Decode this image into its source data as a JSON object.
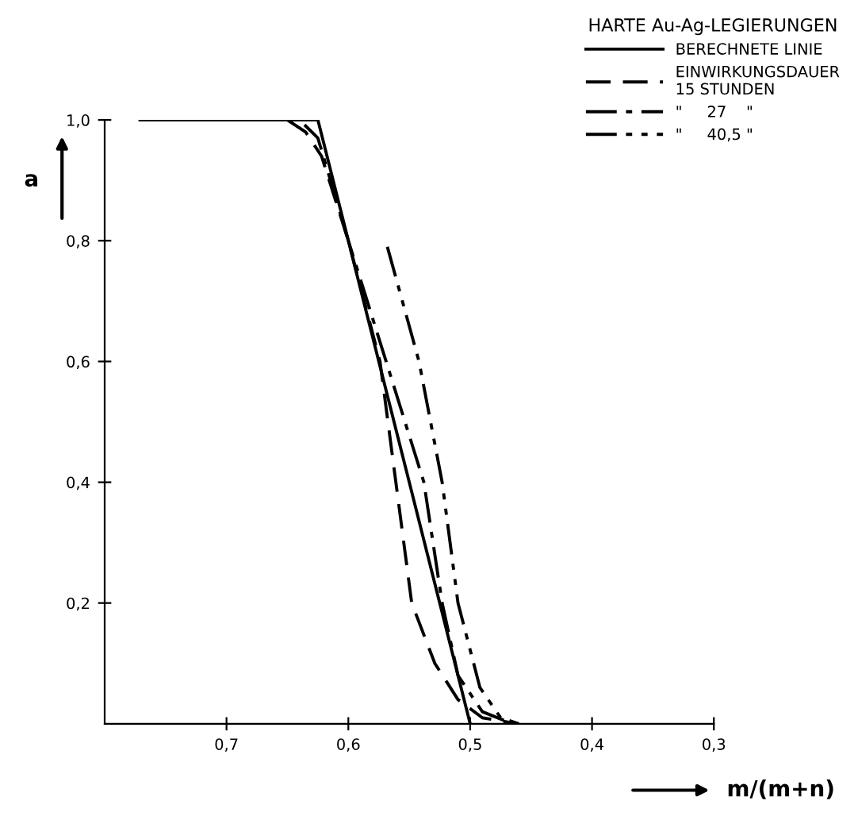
{
  "chart_data": {
    "type": "line",
    "legend_title": "HARTE Au-Ag-LEGIERUNGEN",
    "xlabel": "m/(m+n)",
    "ylabel": "a",
    "xlim": [
      0.8,
      0.3
    ],
    "ylim": [
      0,
      1.0
    ],
    "xticks": [
      {
        "value": 0.7,
        "label": "0,7"
      },
      {
        "value": 0.6,
        "label": "0,6"
      },
      {
        "value": 0.5,
        "label": "0,5"
      },
      {
        "value": 0.4,
        "label": "0,4"
      },
      {
        "value": 0.3,
        "label": "0,3"
      }
    ],
    "yticks": [
      {
        "value": 0.2,
        "label": "0,2"
      },
      {
        "value": 0.4,
        "label": "0,4"
      },
      {
        "value": 0.6,
        "label": "0,6"
      },
      {
        "value": 0.8,
        "label": "0,8"
      },
      {
        "value": 1.0,
        "label": "1,0"
      }
    ],
    "grid": false,
    "legend": "top right",
    "series": [
      {
        "name": "BERECHNETE LINIE",
        "color": "#000000",
        "line_style": "solid",
        "x": [
          0.771,
          0.625,
          0.5
        ],
        "values": [
          1.0,
          1.0,
          0.0
        ]
      },
      {
        "name": "EINWIRKUNGSDAUER\n15 STUNDEN",
        "color": "#000000",
        "line_style": "dashed",
        "x": [
          0.771,
          0.65,
          0.635,
          0.622,
          0.6,
          0.574,
          0.561,
          0.548,
          0.529,
          0.51,
          0.49,
          0.461
        ],
        "values": [
          1.0,
          1.0,
          0.98,
          0.94,
          0.8,
          0.6,
          0.4,
          0.2,
          0.1,
          0.04,
          0.01,
          0.0
        ]
      },
      {
        "name": "\"     27    \"",
        "color": "#000000",
        "line_style": "dashdot",
        "x": [
          0.771,
          0.64,
          0.625,
          0.6,
          0.569,
          0.538,
          0.523,
          0.51,
          0.49,
          0.465
        ],
        "values": [
          1.0,
          1.0,
          0.97,
          0.8,
          0.6,
          0.4,
          0.2,
          0.08,
          0.02,
          0.0
        ]
      },
      {
        "name": "\"     40,5 \"",
        "color": "#000000",
        "line_style": "dashdotdot",
        "x": [
          0.568,
          0.542,
          0.523,
          0.51,
          0.492,
          0.475,
          0.46
        ],
        "values": [
          0.79,
          0.6,
          0.4,
          0.2,
          0.06,
          0.01,
          0.0
        ]
      }
    ]
  }
}
